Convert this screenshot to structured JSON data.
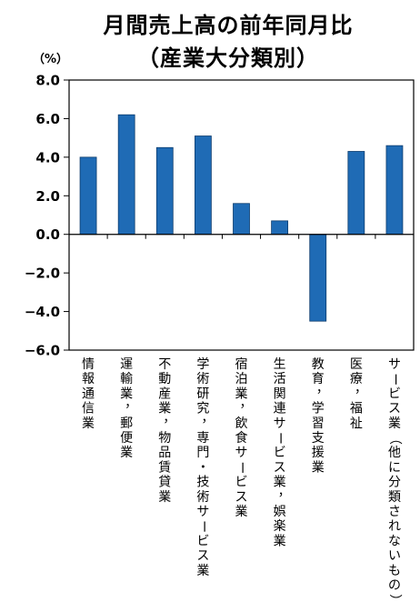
{
  "chart_data": {
    "type": "bar",
    "title": [
      "月間売上高の前年同月比",
      "（産業大分類別）"
    ],
    "ylabel": "（%）",
    "xlabel": "",
    "ylim": [
      -6.0,
      8.0
    ],
    "yticks": [
      8.0,
      6.0,
      4.0,
      2.0,
      0.0,
      -2.0,
      -4.0,
      -6.0
    ],
    "ytick_labels": [
      "8.0",
      "6.0",
      "4.0",
      "2.0",
      "0.0",
      "−2.0",
      "−4.0",
      "−6.0"
    ],
    "grid": false,
    "categories": [
      "情報通信業",
      "運輸業，郵便業",
      "不動産業，物品賃貸業",
      "学術研究，専門・技術サービス業",
      "宿泊業，飲食サービス業",
      "生活関連サービス業，娯楽業",
      "教育，学習支援業",
      "医療，福祉",
      "サービス業（他に分類されないもの）"
    ],
    "values": [
      4.0,
      6.2,
      4.5,
      5.1,
      1.6,
      0.7,
      -4.5,
      4.3,
      4.6
    ],
    "bar_color": "#1f6bb5",
    "bar_edge_color": "#0d3c6e"
  }
}
